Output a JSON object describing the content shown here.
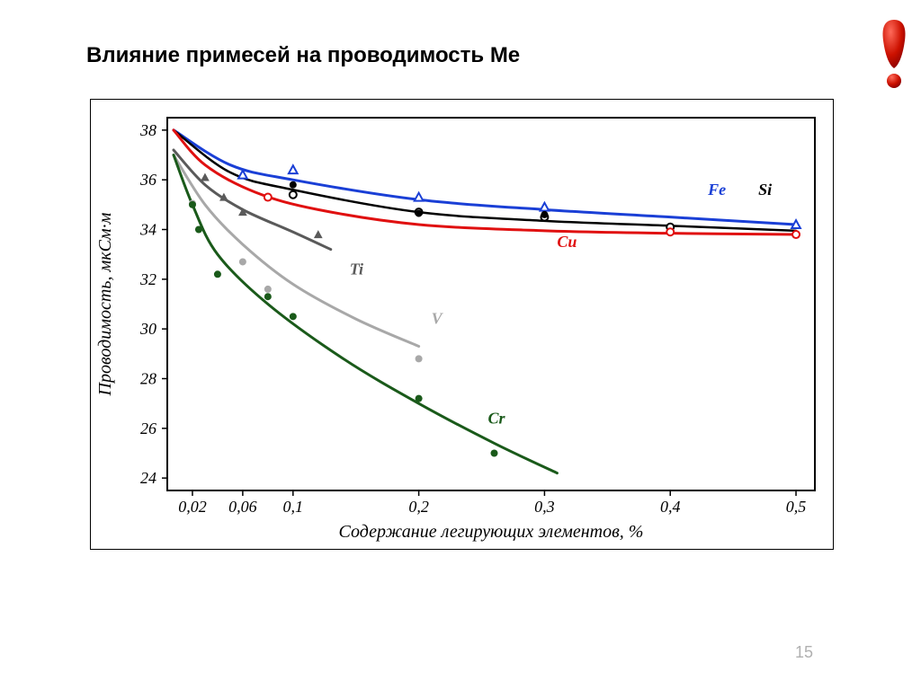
{
  "title": "Влияние примесей на проводимость Ме",
  "page_number": "15",
  "chart": {
    "type": "line",
    "background_color": "#ffffff",
    "border_color": "#000000",
    "tick_font_size": 18,
    "tick_font_style": "italic",
    "tick_font_family": "Times New Roman",
    "tick_color": "#000000",
    "xlabel": "Содержание легирующих элементов, %",
    "xlabel_fontsize": 20,
    "ylabel": "Проводимость, мкСм·м",
    "ylabel_fontsize": 20,
    "x_ticks": [
      {
        "v": 0.02,
        "label": "0,02"
      },
      {
        "v": 0.06,
        "label": "0,06"
      },
      {
        "v": 0.1,
        "label": "0,1"
      },
      {
        "v": 0.2,
        "label": "0,2"
      },
      {
        "v": 0.3,
        "label": "0,3"
      },
      {
        "v": 0.4,
        "label": "0,4"
      },
      {
        "v": 0.5,
        "label": "0,5"
      }
    ],
    "xlim": [
      0.0,
      0.515
    ],
    "y_ticks": [
      24,
      26,
      28,
      30,
      32,
      34,
      36,
      38
    ],
    "ylim": [
      23.5,
      38.5
    ],
    "tick_len": 6,
    "series": [
      {
        "name": "Fe",
        "label": "Fe",
        "label_pos": {
          "x": 0.43,
          "y": 35.4
        },
        "color": "#1a3fd6",
        "line_width": 3,
        "marker": "triangle-open",
        "marker_color": "#1a3fd6",
        "marker_size": 9,
        "line_points": [
          {
            "x": 0.005,
            "y": 38.0
          },
          {
            "x": 0.05,
            "y": 36.6
          },
          {
            "x": 0.1,
            "y": 36.0
          },
          {
            "x": 0.2,
            "y": 35.2
          },
          {
            "x": 0.3,
            "y": 34.8
          },
          {
            "x": 0.4,
            "y": 34.5
          },
          {
            "x": 0.5,
            "y": 34.2
          }
        ],
        "marker_points": [
          {
            "x": 0.06,
            "y": 36.2
          },
          {
            "x": 0.1,
            "y": 36.4
          },
          {
            "x": 0.2,
            "y": 35.3
          },
          {
            "x": 0.3,
            "y": 34.9
          },
          {
            "x": 0.5,
            "y": 34.2
          }
        ]
      },
      {
        "name": "Si",
        "label": "Si",
        "label_pos": {
          "x": 0.47,
          "y": 35.4
        },
        "color": "#000000",
        "line_width": 2.5,
        "marker": "circle-open",
        "marker_color": "#000000",
        "marker_size": 8,
        "line_points": [
          {
            "x": 0.005,
            "y": 38.0
          },
          {
            "x": 0.05,
            "y": 36.3
          },
          {
            "x": 0.1,
            "y": 35.6
          },
          {
            "x": 0.2,
            "y": 34.7
          },
          {
            "x": 0.3,
            "y": 34.35
          },
          {
            "x": 0.4,
            "y": 34.15
          },
          {
            "x": 0.5,
            "y": 33.95
          }
        ],
        "marker_points": [
          {
            "x": 0.1,
            "y": 35.4
          },
          {
            "x": 0.2,
            "y": 34.7
          },
          {
            "x": 0.3,
            "y": 34.5
          },
          {
            "x": 0.4,
            "y": 34.1
          }
        ]
      },
      {
        "name": "Cu",
        "label": "Cu",
        "label_pos": {
          "x": 0.31,
          "y": 33.3
        },
        "color": "#e01010",
        "line_width": 3,
        "marker": "circle-open",
        "marker_color": "#e01010",
        "marker_size": 8,
        "line_points": [
          {
            "x": 0.005,
            "y": 38.0
          },
          {
            "x": 0.03,
            "y": 36.6
          },
          {
            "x": 0.07,
            "y": 35.5
          },
          {
            "x": 0.12,
            "y": 34.8
          },
          {
            "x": 0.2,
            "y": 34.2
          },
          {
            "x": 0.3,
            "y": 33.95
          },
          {
            "x": 0.4,
            "y": 33.85
          },
          {
            "x": 0.5,
            "y": 33.8
          }
        ],
        "marker_points": [
          {
            "x": 0.08,
            "y": 35.3
          },
          {
            "x": 0.4,
            "y": 33.9
          },
          {
            "x": 0.5,
            "y": 33.8
          }
        ]
      },
      {
        "name": "solid-black-markers",
        "label": "",
        "color": "#000000",
        "line_width": 0,
        "marker": "circle",
        "marker_color": "#000000",
        "marker_size": 8,
        "line_points": [],
        "marker_points": [
          {
            "x": 0.1,
            "y": 35.8
          },
          {
            "x": 0.2,
            "y": 34.65
          },
          {
            "x": 0.3,
            "y": 34.6
          }
        ]
      },
      {
        "name": "Ti",
        "label": "Ti",
        "label_pos": {
          "x": 0.145,
          "y": 32.2
        },
        "color": "#5a5a5a",
        "line_width": 3,
        "marker": "triangle",
        "marker_color": "#5a5a5a",
        "marker_size": 9,
        "line_points": [
          {
            "x": 0.005,
            "y": 37.2
          },
          {
            "x": 0.03,
            "y": 35.8
          },
          {
            "x": 0.06,
            "y": 34.8
          },
          {
            "x": 0.1,
            "y": 33.9
          },
          {
            "x": 0.13,
            "y": 33.2
          }
        ],
        "marker_points": [
          {
            "x": 0.03,
            "y": 36.1
          },
          {
            "x": 0.045,
            "y": 35.3
          },
          {
            "x": 0.06,
            "y": 34.7
          },
          {
            "x": 0.12,
            "y": 33.8
          }
        ]
      },
      {
        "name": "V",
        "label": "V",
        "label_pos": {
          "x": 0.21,
          "y": 30.2
        },
        "color": "#a8a8a8",
        "line_width": 3,
        "marker": "circle",
        "marker_color": "#a8a8a8",
        "marker_size": 8,
        "line_points": [
          {
            "x": 0.005,
            "y": 37.0
          },
          {
            "x": 0.03,
            "y": 35.0
          },
          {
            "x": 0.06,
            "y": 33.4
          },
          {
            "x": 0.1,
            "y": 31.8
          },
          {
            "x": 0.15,
            "y": 30.4
          },
          {
            "x": 0.2,
            "y": 29.3
          }
        ],
        "marker_points": [
          {
            "x": 0.02,
            "y": 35.05
          },
          {
            "x": 0.06,
            "y": 32.7
          },
          {
            "x": 0.08,
            "y": 31.6
          },
          {
            "x": 0.2,
            "y": 28.8
          }
        ]
      },
      {
        "name": "Cr",
        "label": "Cr",
        "label_pos": {
          "x": 0.255,
          "y": 26.2
        },
        "color": "#1a5a1a",
        "line_width": 3,
        "marker": "circle",
        "marker_color": "#1a5a1a",
        "marker_size": 8,
        "line_points": [
          {
            "x": 0.005,
            "y": 37.0
          },
          {
            "x": 0.02,
            "y": 35.0
          },
          {
            "x": 0.04,
            "y": 33.0
          },
          {
            "x": 0.08,
            "y": 31.0
          },
          {
            "x": 0.14,
            "y": 28.8
          },
          {
            "x": 0.2,
            "y": 27.0
          },
          {
            "x": 0.26,
            "y": 25.4
          },
          {
            "x": 0.31,
            "y": 24.2
          }
        ],
        "marker_points": [
          {
            "x": 0.02,
            "y": 35.0
          },
          {
            "x": 0.025,
            "y": 34.0
          },
          {
            "x": 0.04,
            "y": 32.2
          },
          {
            "x": 0.08,
            "y": 31.3
          },
          {
            "x": 0.1,
            "y": 30.5
          },
          {
            "x": 0.2,
            "y": 27.2
          },
          {
            "x": 0.26,
            "y": 25.0
          }
        ]
      }
    ]
  }
}
